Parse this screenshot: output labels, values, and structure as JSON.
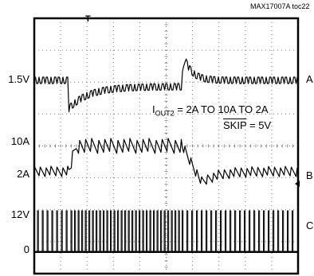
{
  "header": {
    "title_fragment": "(              )",
    "part_number": "MAX17007A toc22"
  },
  "chart_data": {
    "type": "line",
    "xlabel": "",
    "ylabel": "",
    "grid": true,
    "grid_divisions": {
      "x": 10,
      "y": 8
    },
    "trigger_marker": "T",
    "y_tick_labels": [
      "1.5V",
      "10A",
      "2A",
      "12V",
      "0"
    ],
    "channels": [
      {
        "label": "A",
        "offset_label": "1.5V",
        "units": "V",
        "description_level": "1.5V"
      },
      {
        "label": "B",
        "level_labels": [
          "10A",
          "2A"
        ],
        "units": "A",
        "step": {
          "low": 2,
          "high": 10,
          "rise_div": 1.3,
          "fall_div": 5.6
        }
      },
      {
        "label": "C",
        "level_labels": [
          "12V",
          "0"
        ],
        "units": "V"
      }
    ],
    "annotation": {
      "line1_prefix": "I",
      "line1_subscript": "OUT2",
      "line1_suffix": " = 2A TO 10A TO 2A",
      "line2_name": "SKIP",
      "line2_value": " = 5V"
    }
  }
}
